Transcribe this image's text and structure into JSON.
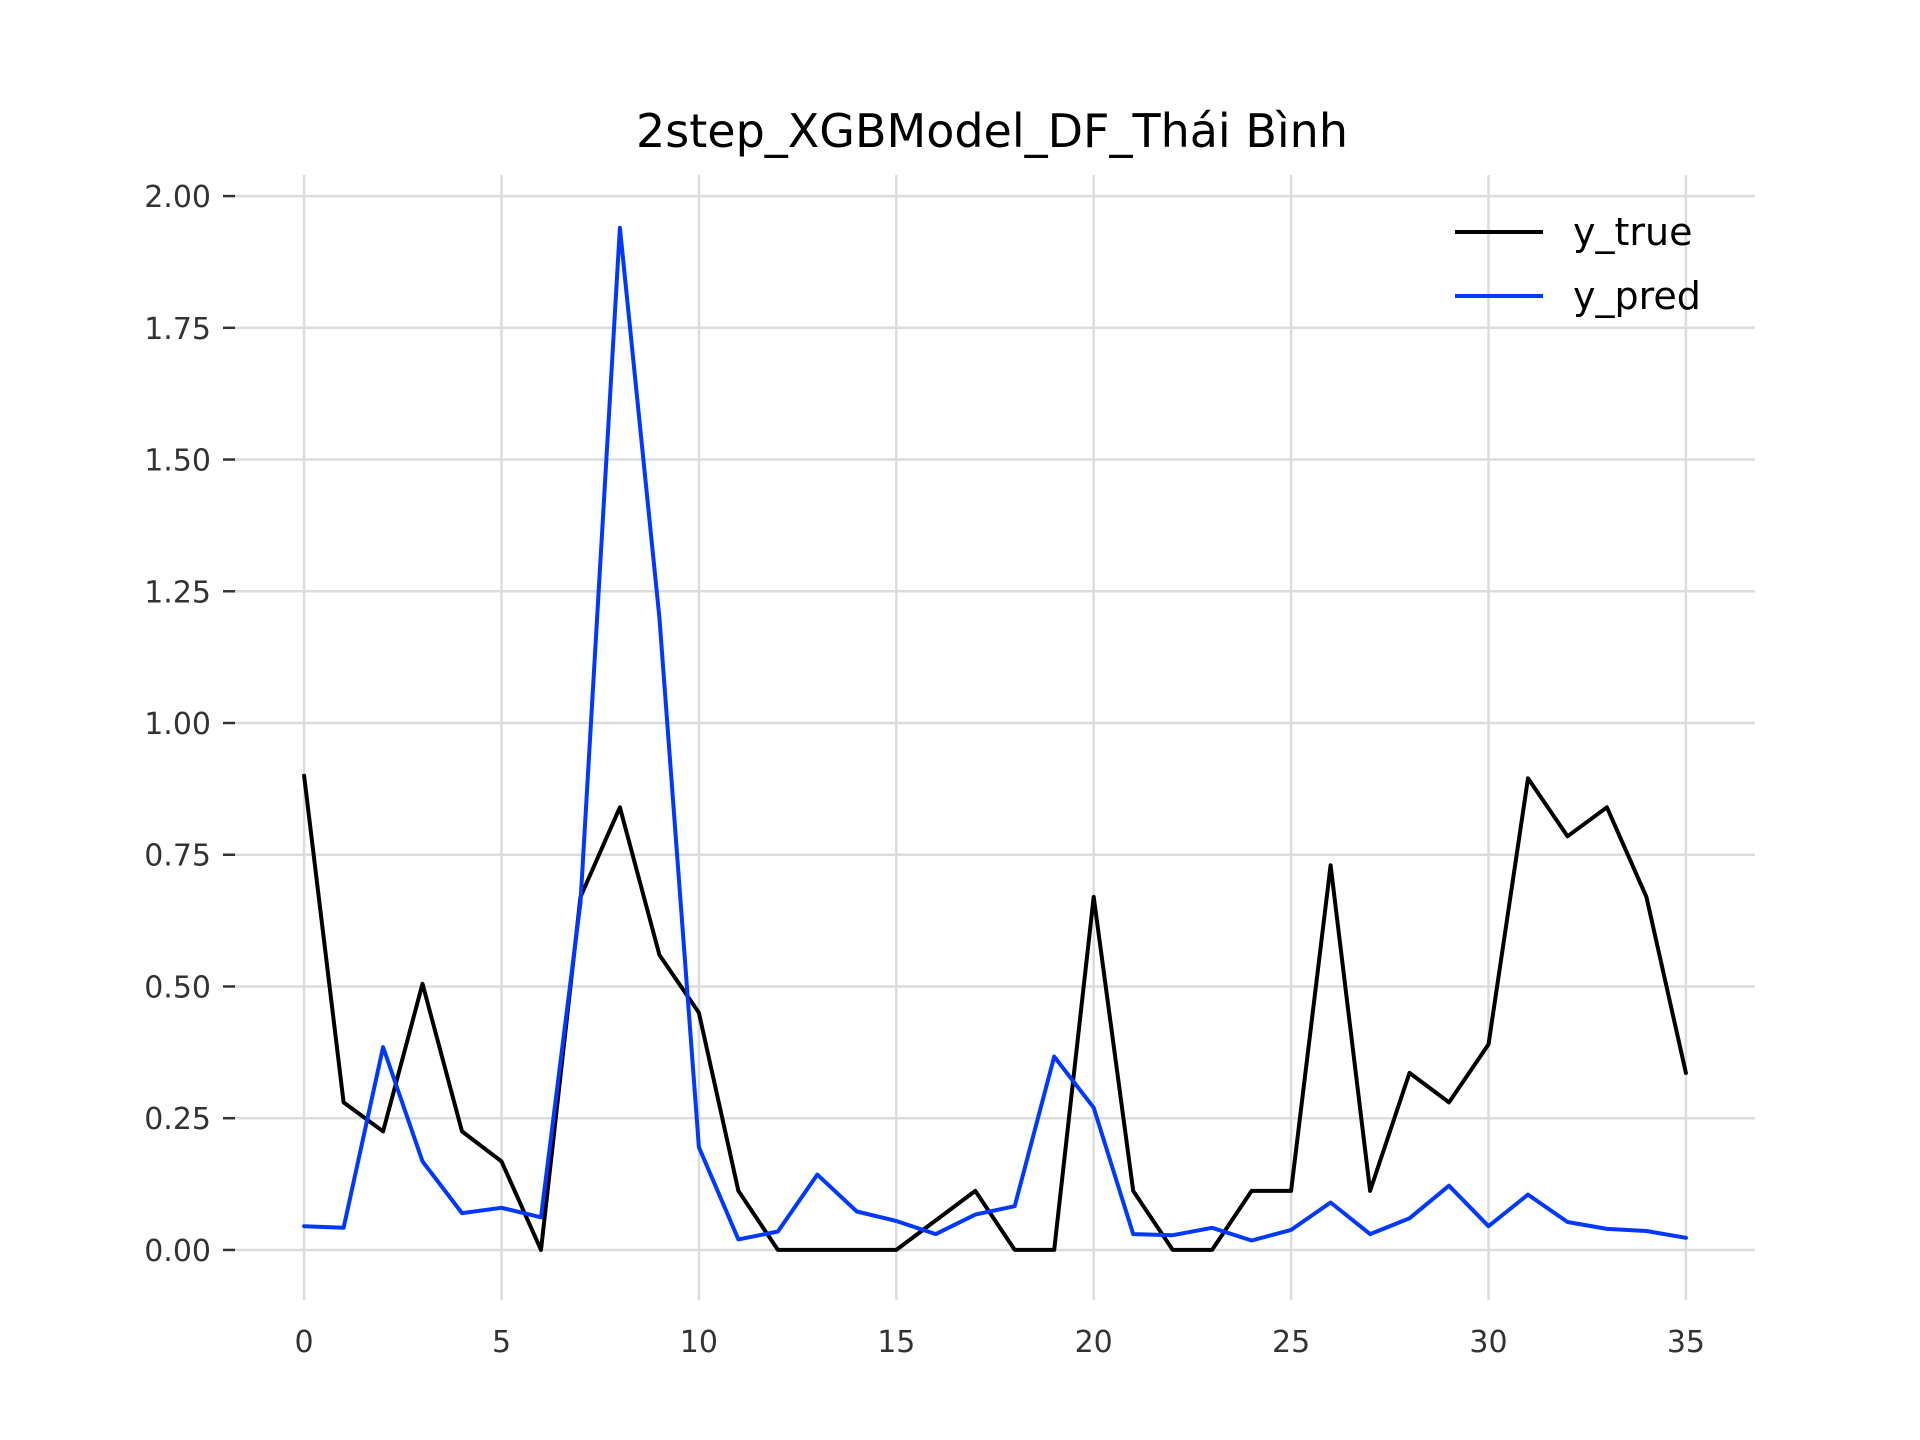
{
  "chart_data": {
    "type": "line",
    "title": "2step_XGBModel_DF_Thái Bình",
    "xlabel": "",
    "ylabel": "",
    "xlim": [
      -1.75,
      36.75
    ],
    "ylim": [
      -0.095,
      2.04
    ],
    "x_ticks": [
      0,
      5,
      10,
      15,
      20,
      25,
      30,
      35
    ],
    "y_ticks": [
      0.0,
      0.25,
      0.5,
      0.75,
      1.0,
      1.25,
      1.5,
      1.75,
      2.0
    ],
    "y_tick_labels": [
      "0.00",
      "0.25",
      "0.50",
      "0.75",
      "1.00",
      "1.25",
      "1.50",
      "1.75",
      "2.00"
    ],
    "grid": true,
    "legend_position": "top-right",
    "x": [
      0,
      1,
      2,
      3,
      4,
      5,
      6,
      7,
      8,
      9,
      10,
      11,
      12,
      13,
      14,
      15,
      16,
      17,
      18,
      19,
      20,
      21,
      22,
      23,
      24,
      25,
      26,
      27,
      28,
      29,
      30,
      31,
      32,
      33,
      34,
      35
    ],
    "series": [
      {
        "name": "y_true",
        "color": "#000000",
        "values": [
          0.9,
          0.28,
          0.225,
          0.505,
          0.225,
          0.168,
          0.0,
          0.67,
          0.84,
          0.56,
          0.45,
          0.112,
          0.0,
          0.0,
          0.0,
          0.0,
          0.056,
          0.112,
          0.0,
          0.0,
          0.67,
          0.112,
          0.0,
          0.0,
          0.112,
          0.112,
          0.73,
          0.112,
          0.336,
          0.28,
          0.39,
          0.895,
          0.785,
          0.84,
          0.67,
          0.336
        ]
      },
      {
        "name": "y_pred",
        "color": "#0038ff",
        "values": [
          0.045,
          0.042,
          0.385,
          0.168,
          0.07,
          0.08,
          0.062,
          0.66,
          1.94,
          1.2,
          0.195,
          0.02,
          0.035,
          0.143,
          0.073,
          0.055,
          0.03,
          0.067,
          0.083,
          0.367,
          0.27,
          0.03,
          0.028,
          0.042,
          0.018,
          0.038,
          0.09,
          0.03,
          0.06,
          0.122,
          0.045,
          0.105,
          0.053,
          0.04,
          0.036,
          0.023
        ]
      }
    ]
  }
}
